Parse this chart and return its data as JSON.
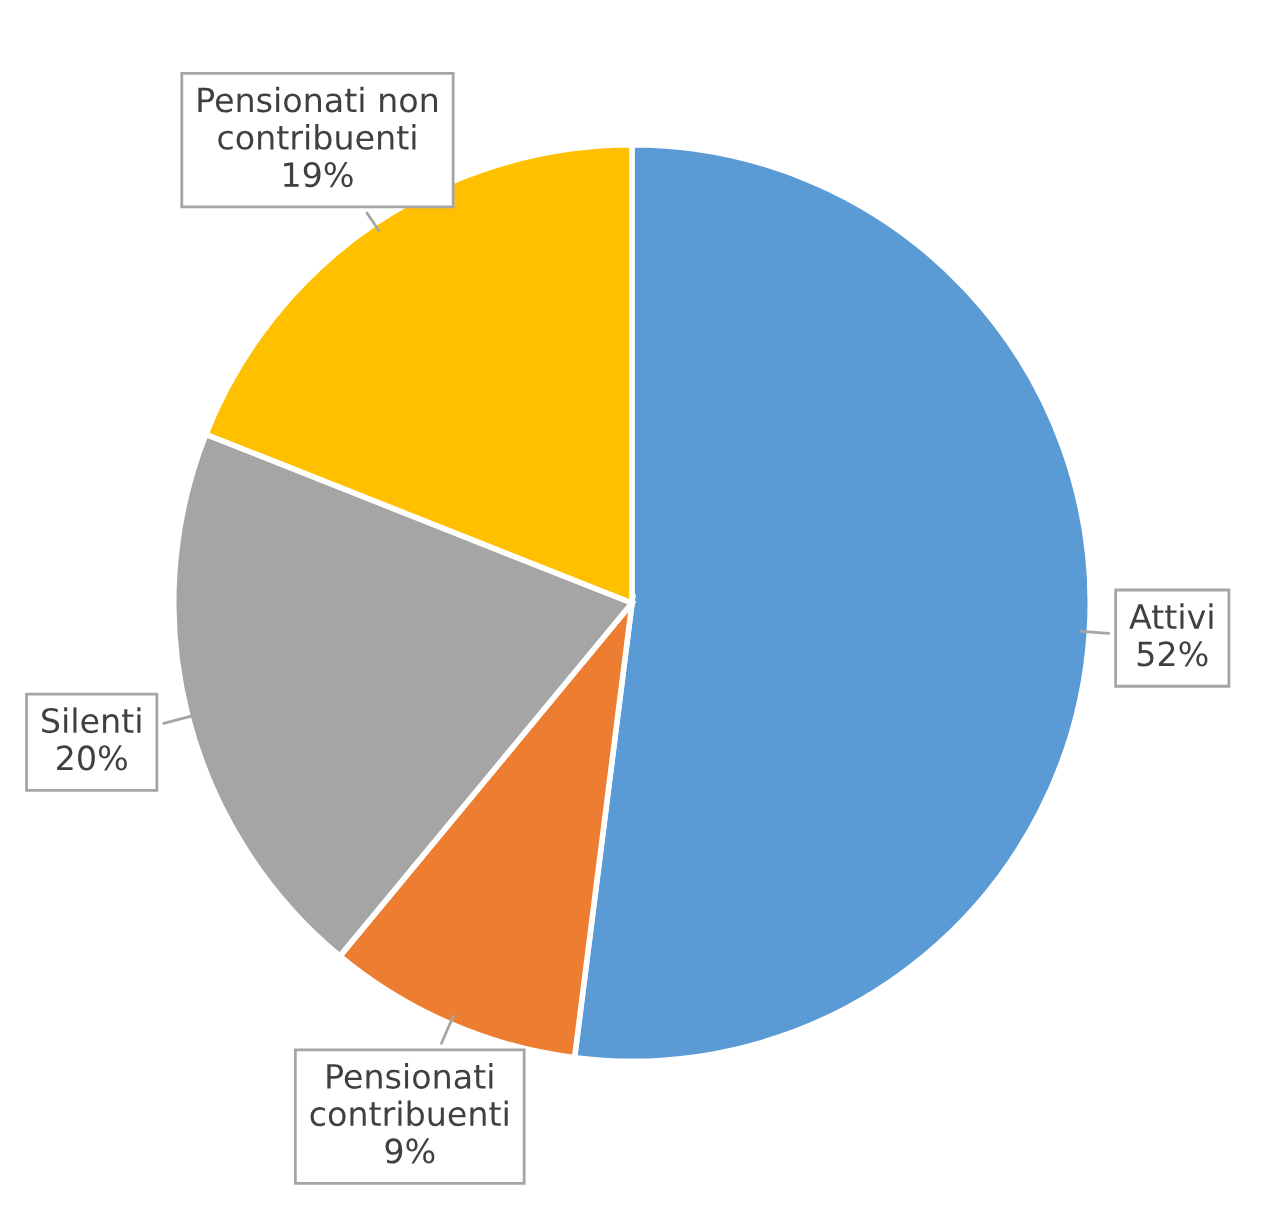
{
  "chart_data": {
    "type": "pie",
    "categories": [
      "Attivi",
      "Pensionati contribuenti",
      "Silenti",
      "Pensionati non contribuenti"
    ],
    "values": [
      52,
      9,
      20,
      19
    ],
    "value_labels": [
      "52%",
      "9%",
      "20%",
      "19%"
    ],
    "colors": [
      "#5b9bd5",
      "#ed7d31",
      "#a5a5a5",
      "#ffc000"
    ],
    "legend": false
  }
}
